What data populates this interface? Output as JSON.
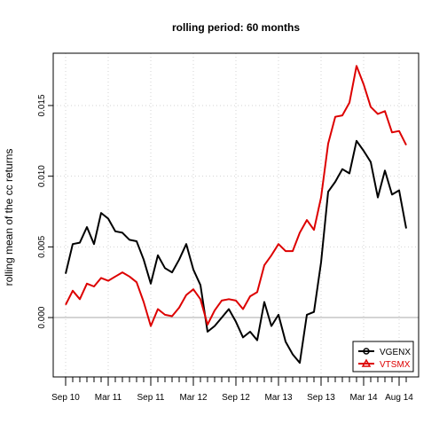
{
  "chart_data": {
    "type": "line",
    "title": "rolling period: 60 months",
    "xlabel": "",
    "ylabel": "rolling mean of the cc returns",
    "x_tick_labels": [
      "Sep 10",
      "Mar 11",
      "Sep 11",
      "Mar 12",
      "Sep 12",
      "Mar 13",
      "Sep 13",
      "Mar 14",
      "Aug 14"
    ],
    "x_tick_index": [
      0,
      6,
      12,
      18,
      24,
      30,
      36,
      42,
      47
    ],
    "n_months": 49,
    "y_ticks": [
      0.0,
      0.005,
      0.01,
      0.015
    ],
    "y_tick_labels": [
      "0.000",
      "0.005",
      "0.010",
      "0.015"
    ],
    "ylim": [
      -0.0042,
      0.0187
    ],
    "grid": true,
    "reference_line_y": 0,
    "legend": {
      "position": "bottom-right"
    },
    "series": [
      {
        "name": "VGENX",
        "color": "#000000",
        "marker": "circle",
        "values": [
          0.0031,
          0.0052,
          0.0053,
          0.0064,
          0.0052,
          0.0074,
          0.007,
          0.0061,
          0.006,
          0.0055,
          0.0054,
          0.0041,
          0.0024,
          0.0044,
          0.0035,
          0.0032,
          0.0041,
          0.0052,
          0.0034,
          0.0023,
          -0.001,
          -0.0006,
          0.0,
          0.0006,
          -0.0003,
          -0.0014,
          -0.001,
          -0.0016,
          0.0011,
          -0.0006,
          0.0002,
          -0.0017,
          -0.0026,
          -0.0032,
          0.0002,
          0.0004,
          0.0039,
          0.0089,
          0.0096,
          0.0105,
          0.0102,
          0.0125,
          0.0118,
          0.011,
          0.0085,
          0.0104,
          0.0087,
          0.009,
          0.0063
        ]
      },
      {
        "name": "VTSMX",
        "color": "#dd0000",
        "marker": "triangle",
        "values": [
          0.0009,
          0.0019,
          0.0013,
          0.0024,
          0.0022,
          0.0028,
          0.0026,
          0.0029,
          0.0032,
          0.0029,
          0.0025,
          0.0011,
          -0.0006,
          0.0006,
          0.0002,
          0.0001,
          0.0007,
          0.0016,
          0.002,
          0.0013,
          -0.0005,
          0.0005,
          0.0012,
          0.0013,
          0.0012,
          0.0006,
          0.0015,
          0.0018,
          0.0037,
          0.0044,
          0.0052,
          0.0047,
          0.0047,
          0.006,
          0.0069,
          0.0062,
          0.0085,
          0.0123,
          0.0142,
          0.0143,
          0.0152,
          0.0178,
          0.0165,
          0.0149,
          0.0144,
          0.0146,
          0.0131,
          0.0132,
          0.0122
        ]
      }
    ]
  }
}
